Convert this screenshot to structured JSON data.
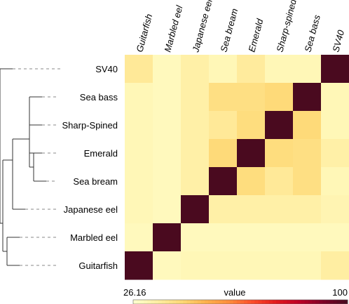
{
  "chart_data": {
    "type": "heatmap",
    "title": "",
    "columns": [
      "Guitarfish",
      "Marbled eel",
      "Japanese eel",
      "Sea bream",
      "Emerald",
      "Sharp-spined",
      "Sea bass",
      "SV40"
    ],
    "rows": [
      "SV40",
      "Sea bass",
      "Sharp-Spined",
      "Emerald",
      "Sea bream",
      "Japanese eel",
      "Marbled eel",
      "Guitarfish"
    ],
    "values": [
      [
        36,
        29,
        33,
        30,
        35,
        30,
        30,
        100
      ],
      [
        30,
        29,
        33,
        40,
        40,
        42,
        100,
        30
      ],
      [
        30,
        29,
        33,
        36,
        41,
        100,
        42,
        30
      ],
      [
        30,
        29,
        33,
        42,
        100,
        41,
        40,
        33
      ],
      [
        30,
        29,
        33,
        100,
        41,
        36,
        40,
        30
      ],
      [
        30,
        29,
        100,
        33,
        33,
        33,
        33,
        31
      ],
      [
        29,
        100,
        29,
        29,
        29,
        29,
        29,
        29
      ],
      [
        100,
        29,
        30,
        30,
        30,
        30,
        30,
        34
      ]
    ],
    "colorbar": {
      "label": "value",
      "min_label": "26.16",
      "max_label": "100",
      "min": 26.16,
      "max": 100,
      "colors": [
        "#ffffcc",
        "#ffeda0",
        "#fed976",
        "#feb24c",
        "#fd8d3c",
        "#fc4e2a",
        "#e31a1c",
        "#bd0026",
        "#800026",
        "#4a0a1f"
      ]
    },
    "dendrogram": {
      "leaves": [
        "SV40",
        "Sea bass",
        "Sharp-Spined",
        "Emerald",
        "Sea bream",
        "Japanese eel",
        "Marbled eel",
        "Guitarfish"
      ]
    }
  }
}
